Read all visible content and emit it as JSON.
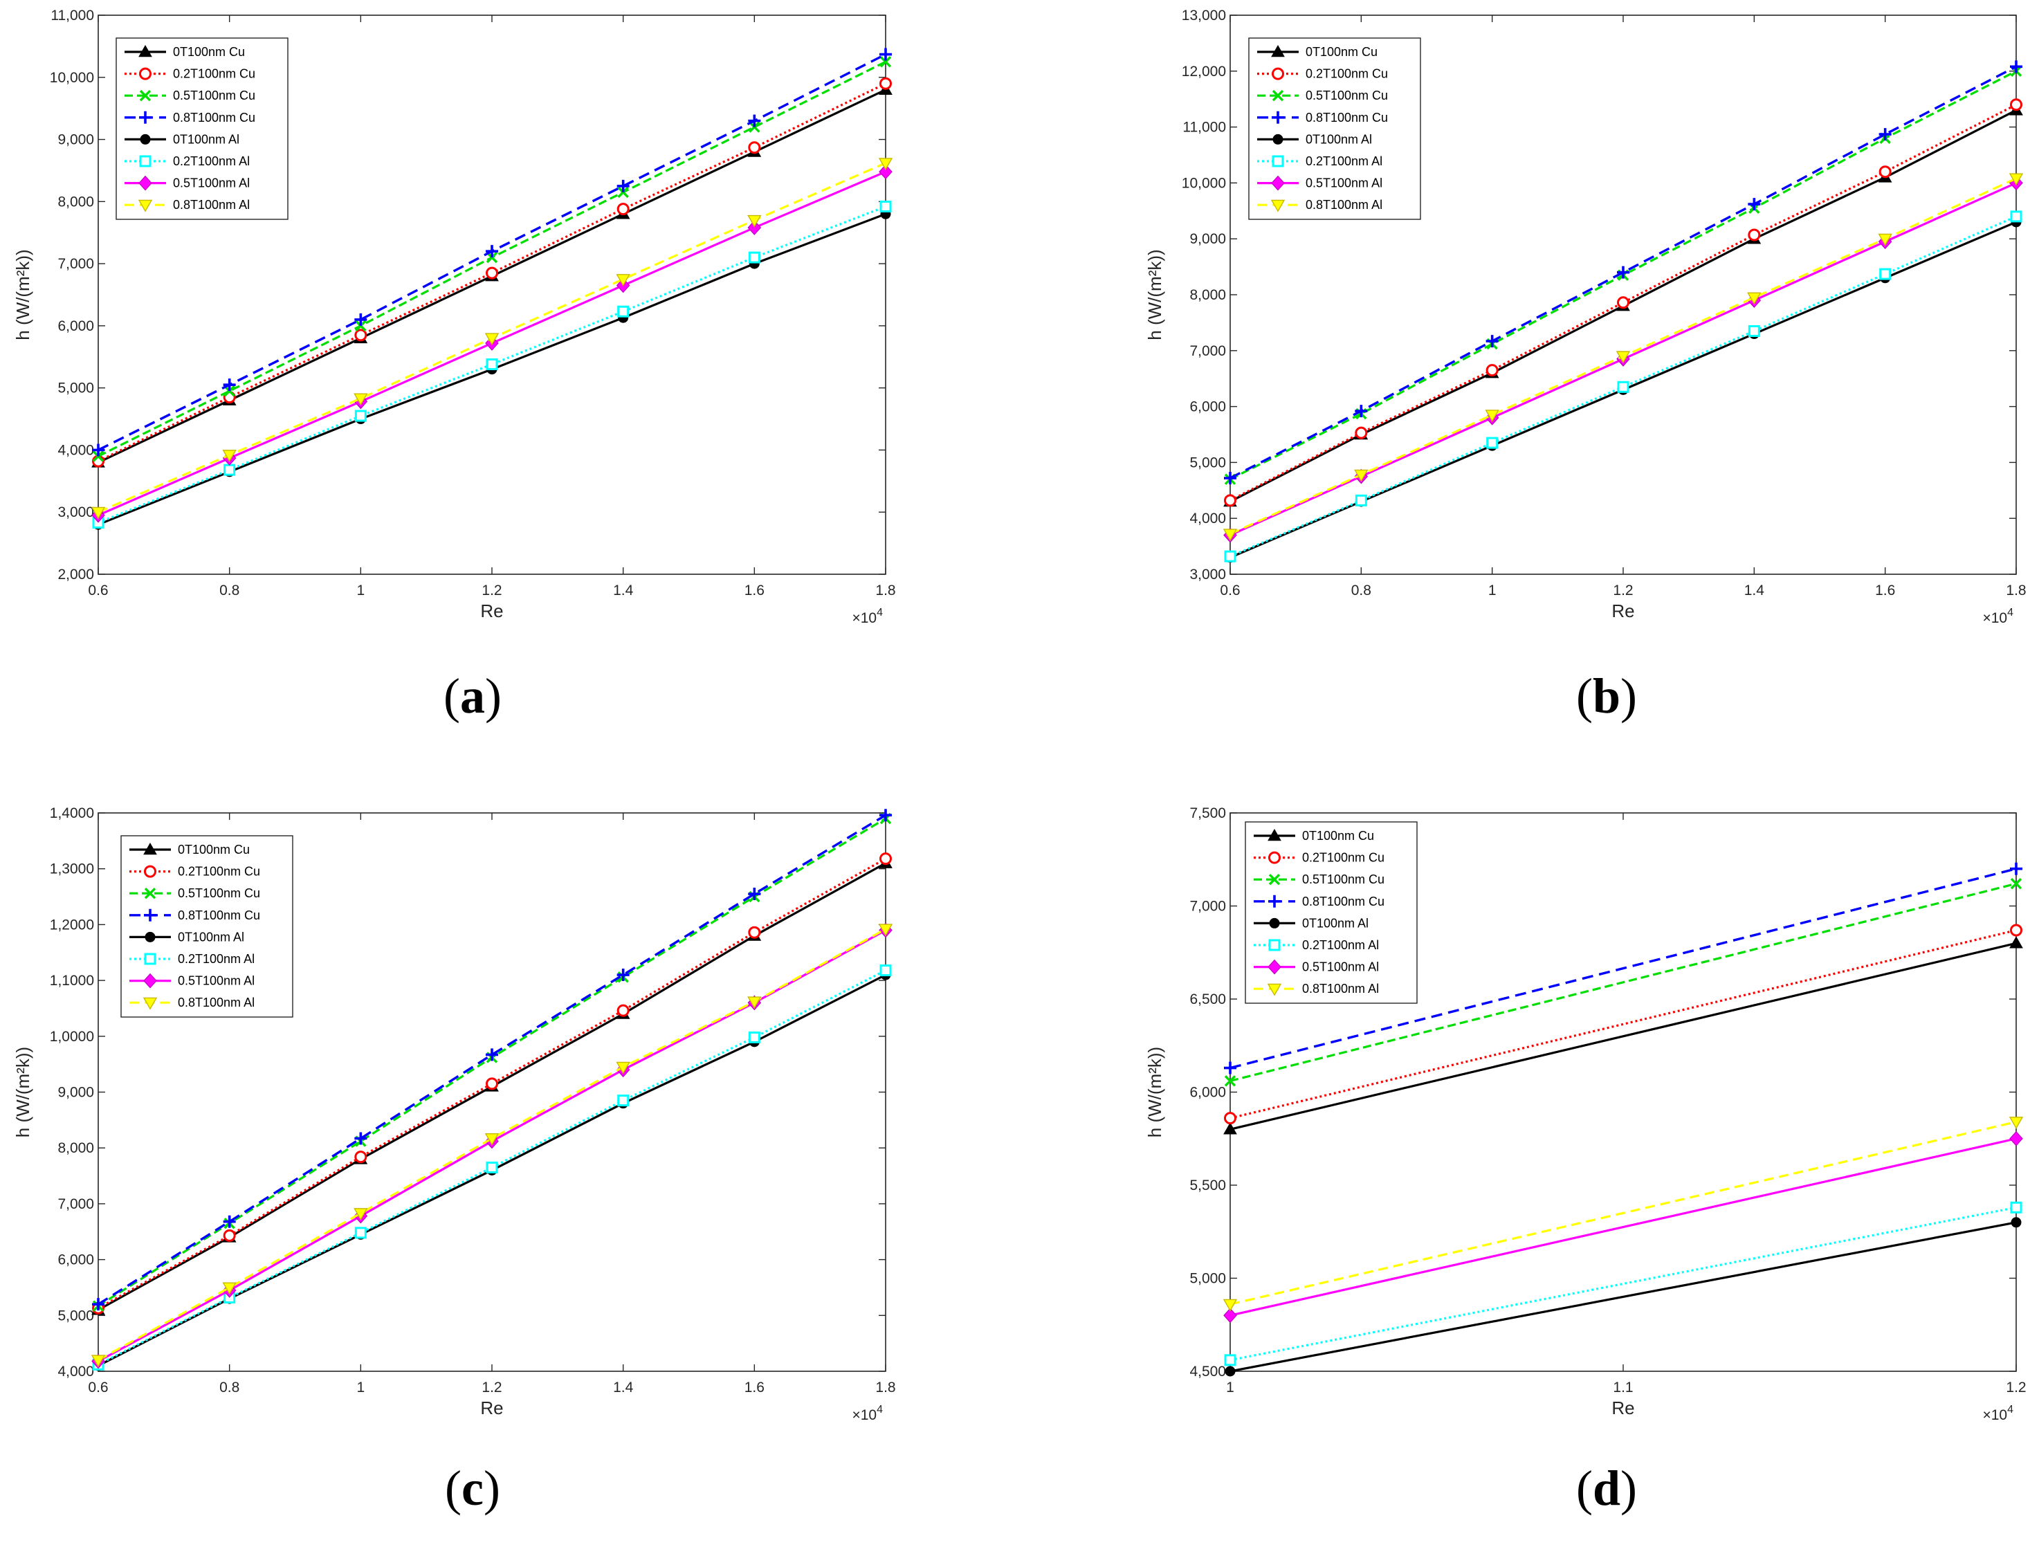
{
  "colors": {
    "0T100nm Cu": "#000000",
    "0.2T100nm Cu": "#ff0000",
    "0.5T100nm Cu": "#00dd00",
    "0.8T100nm Cu": "#0000ff",
    "0T100nm Al": "#000000",
    "0.2T100nm Al": "#00ffff",
    "0.5T100nm Al": "#ff00ff",
    "0.8T100nm Al": "#ffff00"
  },
  "chart_data": [
    {
      "type": "line",
      "id": "a",
      "caption_letter": "a",
      "xlabel": "Re",
      "ylabel": "h (W/(m²k))",
      "x_multiplier": "×10",
      "x_exponent": "4",
      "xlim": [
        0.6,
        1.8
      ],
      "ylim": [
        2000,
        11000
      ],
      "x_ticks": [
        0.6,
        0.8,
        1,
        1.2,
        1.4,
        1.6,
        1.8
      ],
      "x_tick_labels": [
        "0.6",
        "0.8",
        "1",
        "1.2",
        "1.4",
        "1.6",
        "1.8"
      ],
      "y_ticks": [
        2000,
        3000,
        4000,
        5000,
        6000,
        7000,
        8000,
        9000,
        10000,
        11000
      ],
      "y_tick_labels": [
        "2,000",
        "3,000",
        "4,000",
        "5,000",
        "6,000",
        "7,000",
        "8,000",
        "9,000",
        "10,000",
        "11,000"
      ],
      "legend_position": "top-left",
      "x": [
        0.6,
        0.8,
        1.0,
        1.2,
        1.4,
        1.6,
        1.8
      ],
      "series": [
        {
          "name": "0T100nm Cu",
          "values": [
            3800,
            4800,
            5800,
            6800,
            7800,
            8800,
            9800
          ]
        },
        {
          "name": "0.2T100nm Cu",
          "values": [
            3820,
            4850,
            5850,
            6850,
            7880,
            8870,
            9900
          ]
        },
        {
          "name": "0.5T100nm Cu",
          "values": [
            3900,
            4950,
            6000,
            7100,
            8150,
            9200,
            10250
          ]
        },
        {
          "name": "0.8T100nm Cu",
          "values": [
            4000,
            5050,
            6100,
            7200,
            8250,
            9300,
            10370
          ]
        },
        {
          "name": "0T100nm Al",
          "values": [
            2800,
            3650,
            4500,
            5300,
            6130,
            7000,
            7800
          ]
        },
        {
          "name": "0.2T100nm Al",
          "values": [
            2830,
            3680,
            4550,
            5380,
            6230,
            7100,
            7920
          ]
        },
        {
          "name": "0.5T100nm Al",
          "values": [
            2950,
            3870,
            4780,
            5720,
            6650,
            7580,
            8480
          ]
        },
        {
          "name": "0.8T100nm Al",
          "values": [
            3000,
            3920,
            4830,
            5800,
            6750,
            7700,
            8620
          ]
        }
      ]
    },
    {
      "type": "line",
      "id": "b",
      "caption_letter": "b",
      "xlabel": "Re",
      "ylabel": "h (W/(m²k))",
      "x_multiplier": "×10",
      "x_exponent": "4",
      "xlim": [
        0.6,
        1.8
      ],
      "ylim": [
        3000,
        13000
      ],
      "x_ticks": [
        0.6,
        0.8,
        1,
        1.2,
        1.4,
        1.6,
        1.8
      ],
      "x_tick_labels": [
        "0.6",
        "0.8",
        "1",
        "1.2",
        "1.4",
        "1.6",
        "1.8"
      ],
      "y_ticks": [
        3000,
        4000,
        5000,
        6000,
        7000,
        8000,
        9000,
        10000,
        11000,
        12000,
        13000
      ],
      "y_tick_labels": [
        "3,000",
        "4,000",
        "5,000",
        "6,000",
        "7,000",
        "8,000",
        "9,000",
        "10,000",
        "11,000",
        "12,000",
        "13,000"
      ],
      "legend_position": "top-left",
      "x": [
        0.6,
        0.8,
        1.0,
        1.2,
        1.4,
        1.6,
        1.8
      ],
      "series": [
        {
          "name": "0T100nm Cu",
          "values": [
            4300,
            5500,
            6600,
            7800,
            9000,
            10100,
            11300
          ]
        },
        {
          "name": "0.2T100nm Cu",
          "values": [
            4320,
            5530,
            6650,
            7860,
            9070,
            10200,
            11400
          ]
        },
        {
          "name": "0.5T100nm Cu",
          "values": [
            4700,
            5870,
            7120,
            8350,
            9550,
            10800,
            12000
          ]
        },
        {
          "name": "0.8T100nm Cu",
          "values": [
            4720,
            5920,
            7170,
            8400,
            9620,
            10870,
            12080
          ]
        },
        {
          "name": "0T100nm Al",
          "values": [
            3300,
            4300,
            5300,
            6300,
            7300,
            8300,
            9300
          ]
        },
        {
          "name": "0.2T100nm Al",
          "values": [
            3320,
            4320,
            5350,
            6350,
            7350,
            8370,
            9400
          ]
        },
        {
          "name": "0.5T100nm Al",
          "values": [
            3700,
            4750,
            5800,
            6850,
            7900,
            8950,
            10000
          ]
        },
        {
          "name": "0.8T100nm Al",
          "values": [
            3720,
            4780,
            5850,
            6900,
            7950,
            9000,
            10080
          ]
        }
      ]
    },
    {
      "type": "line",
      "id": "c",
      "caption_letter": "c",
      "xlabel": "Re",
      "ylabel": "h (W/(m²k))",
      "x_multiplier": "×10",
      "x_exponent": "4",
      "xlim": [
        0.6,
        1.8
      ],
      "ylim": [
        4000,
        14000
      ],
      "x_ticks": [
        0.6,
        0.8,
        1,
        1.2,
        1.4,
        1.6,
        1.8
      ],
      "x_tick_labels": [
        "0.6",
        "0.8",
        "1",
        "1.2",
        "1.4",
        "1.6",
        "1.8"
      ],
      "y_ticks": [
        4000,
        5000,
        6000,
        7000,
        8000,
        9000,
        10000,
        11000,
        12000,
        13000,
        14000
      ],
      "y_tick_labels": [
        "4,000",
        "5,000",
        "6,000",
        "7,000",
        "8,000",
        "9,000",
        "1,0000",
        "1,1000",
        "1,2000",
        "1,3000",
        "1,4000"
      ],
      "legend_position": "top-left",
      "x": [
        0.6,
        0.8,
        1.0,
        1.2,
        1.4,
        1.6,
        1.8
      ],
      "series": [
        {
          "name": "0T100nm Cu",
          "values": [
            5100,
            6400,
            7800,
            9100,
            10400,
            11800,
            13100
          ]
        },
        {
          "name": "0.2T100nm Cu",
          "values": [
            5130,
            6430,
            7840,
            9150,
            10460,
            11860,
            13180
          ]
        },
        {
          "name": "0.5T100nm Cu",
          "values": [
            5170,
            6650,
            8120,
            9620,
            11060,
            12500,
            13900
          ]
        },
        {
          "name": "0.8T100nm Cu",
          "values": [
            5200,
            6680,
            8170,
            9670,
            11100,
            12550,
            13960
          ]
        },
        {
          "name": "0T100nm Al",
          "values": [
            4100,
            5300,
            6450,
            7600,
            8800,
            9900,
            11100
          ]
        },
        {
          "name": "0.2T100nm Al",
          "values": [
            4120,
            5320,
            6480,
            7650,
            8850,
            9980,
            11180
          ]
        },
        {
          "name": "0.5T100nm Al",
          "values": [
            4180,
            5450,
            6780,
            8120,
            9400,
            10600,
            11900
          ]
        },
        {
          "name": "0.8T100nm Al",
          "values": [
            4200,
            5500,
            6830,
            8170,
            9450,
            10620,
            11920
          ]
        }
      ]
    },
    {
      "type": "line",
      "id": "d",
      "caption_letter": "d",
      "xlabel": "Re",
      "ylabel": "h (W/(m²k))",
      "x_multiplier": "×10",
      "x_exponent": "4",
      "xlim": [
        1.0,
        1.2
      ],
      "ylim": [
        4500,
        7500
      ],
      "x_ticks": [
        1,
        1.1,
        1.2
      ],
      "x_tick_labels": [
        "1",
        "1.1",
        "1.2"
      ],
      "y_ticks": [
        4500,
        5000,
        5500,
        6000,
        6500,
        7000,
        7500
      ],
      "y_tick_labels": [
        "4,500",
        "5,000",
        "5,500",
        "6,000",
        "6,500",
        "7,000",
        "7,500"
      ],
      "legend_position": "top-left",
      "x": [
        1.0,
        1.2
      ],
      "series": [
        {
          "name": "0T100nm Cu",
          "values": [
            5800,
            6800
          ]
        },
        {
          "name": "0.2T100nm Cu",
          "values": [
            5860,
            6870
          ]
        },
        {
          "name": "0.5T100nm Cu",
          "values": [
            6060,
            7120
          ]
        },
        {
          "name": "0.8T100nm Cu",
          "values": [
            6130,
            7200
          ]
        },
        {
          "name": "0T100nm Al",
          "values": [
            4500,
            5300
          ]
        },
        {
          "name": "0.2T100nm Al",
          "values": [
            4560,
            5380
          ]
        },
        {
          "name": "0.5T100nm Al",
          "values": [
            4800,
            5750
          ]
        },
        {
          "name": "0.8T100nm Al",
          "values": [
            4860,
            5840
          ]
        }
      ]
    }
  ]
}
